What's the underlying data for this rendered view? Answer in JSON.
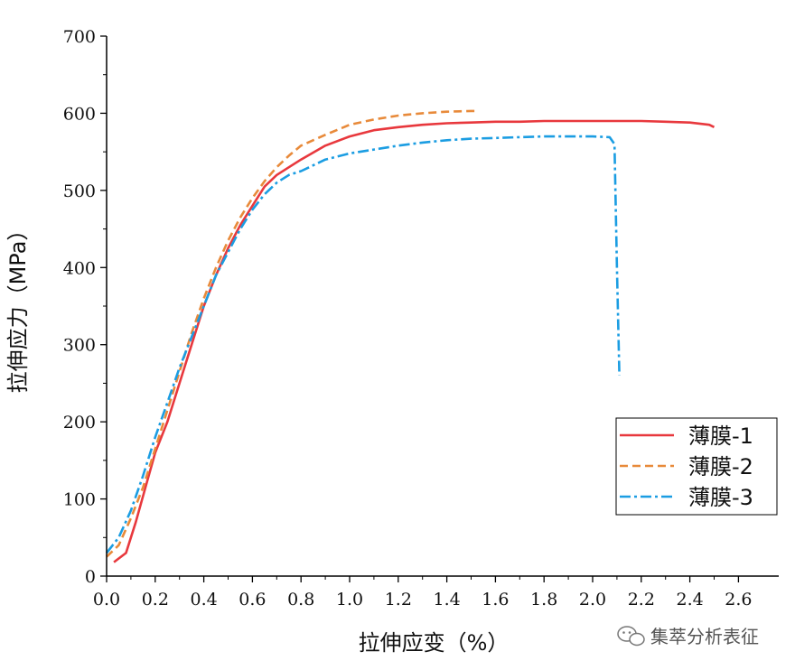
{
  "chart_data": {
    "type": "line",
    "title": "",
    "xlabel": "拉伸应变（%）",
    "ylabel": "拉伸应力（MPa）",
    "xlim": [
      0,
      2.7
    ],
    "ylim": [
      0,
      700
    ],
    "x_ticks": [
      "0.0",
      "0.2",
      "0.4",
      "0.6",
      "0.8",
      "1.0",
      "1.2",
      "1.4",
      "1.6",
      "1.8",
      "2.0",
      "2.2",
      "2.4",
      "2.6"
    ],
    "y_ticks": [
      "0",
      "100",
      "200",
      "300",
      "400",
      "500",
      "600",
      "700"
    ],
    "legend_position": "bottom-right",
    "grid": false,
    "series": [
      {
        "name": "薄膜-1",
        "color": "#e8383d",
        "style": "solid",
        "x": [
          0.03,
          0.08,
          0.12,
          0.16,
          0.2,
          0.25,
          0.3,
          0.35,
          0.4,
          0.45,
          0.5,
          0.55,
          0.6,
          0.65,
          0.7,
          0.75,
          0.8,
          0.9,
          1.0,
          1.1,
          1.2,
          1.3,
          1.4,
          1.5,
          1.6,
          1.7,
          1.8,
          1.9,
          2.0,
          2.1,
          2.2,
          2.3,
          2.4,
          2.48,
          2.5
        ],
        "y": [
          18,
          30,
          70,
          115,
          160,
          200,
          250,
          300,
          350,
          390,
          425,
          455,
          480,
          505,
          520,
          530,
          540,
          558,
          570,
          578,
          582,
          585,
          587,
          588,
          589,
          589,
          590,
          590,
          590,
          590,
          590,
          589,
          588,
          585,
          582
        ]
      },
      {
        "name": "薄膜-2",
        "color": "#e88a3a",
        "style": "dashed",
        "x": [
          0.0,
          0.05,
          0.1,
          0.15,
          0.2,
          0.25,
          0.3,
          0.35,
          0.4,
          0.45,
          0.5,
          0.55,
          0.6,
          0.65,
          0.7,
          0.75,
          0.8,
          0.9,
          1.0,
          1.1,
          1.2,
          1.3,
          1.4,
          1.5,
          1.53
        ],
        "y": [
          25,
          40,
          75,
          115,
          165,
          215,
          265,
          315,
          360,
          400,
          435,
          465,
          490,
          512,
          530,
          545,
          558,
          572,
          585,
          592,
          597,
          600,
          602,
          603,
          603
        ]
      },
      {
        "name": "薄膜-3",
        "color": "#1b9de2",
        "style": "dashdot",
        "x": [
          0.0,
          0.05,
          0.1,
          0.15,
          0.2,
          0.25,
          0.3,
          0.35,
          0.4,
          0.45,
          0.5,
          0.55,
          0.6,
          0.65,
          0.7,
          0.75,
          0.8,
          0.9,
          1.0,
          1.1,
          1.2,
          1.3,
          1.4,
          1.5,
          1.6,
          1.7,
          1.8,
          1.9,
          2.0,
          2.07,
          2.09,
          2.1,
          2.11
        ],
        "y": [
          30,
          50,
          85,
          130,
          180,
          225,
          270,
          310,
          350,
          390,
          420,
          450,
          475,
          495,
          510,
          520,
          525,
          540,
          548,
          553,
          558,
          562,
          565,
          567,
          568,
          569,
          570,
          570,
          570,
          569,
          560,
          400,
          260
        ]
      }
    ]
  },
  "watermark": {
    "icon": "wechat-icon",
    "text": "集萃分析表征"
  }
}
